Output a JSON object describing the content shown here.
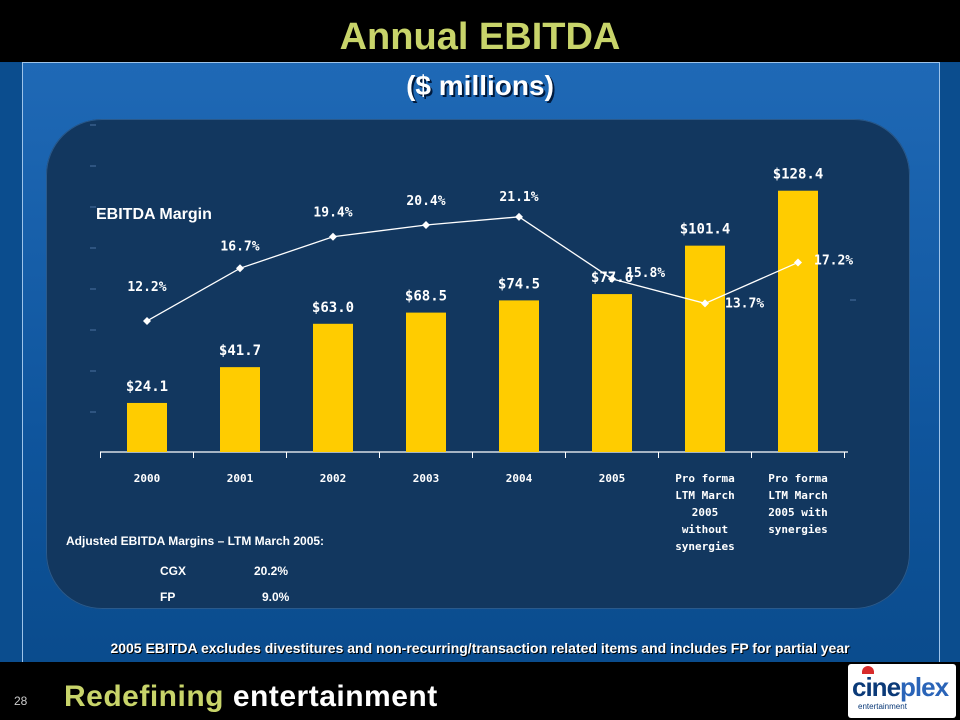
{
  "slide": {
    "title": "Annual EBITDA",
    "subtitle": "($ millions)",
    "page_number": "28",
    "footnote": "2005 EBITDA excludes divestitures and non-recurring/transaction related items and includes FP for partial year",
    "tagline_word1": "Redefining",
    "tagline_word2": "entertainment",
    "logo_text_1": "cine",
    "logo_text_2": "plex",
    "logo_sub": "entertainment"
  },
  "margin_label": "EBITDA Margin",
  "adjusted": {
    "title": "Adjusted EBITDA Margins – LTM March 2005:",
    "rows": [
      {
        "name": "CGX",
        "value": "20.2%"
      },
      {
        "name": "FP",
        "value": "9.0%"
      }
    ]
  },
  "chart_data": {
    "type": "bar",
    "categories": [
      [
        "2000"
      ],
      [
        "2001"
      ],
      [
        "2002"
      ],
      [
        "2003"
      ],
      [
        "2004"
      ],
      [
        "2005"
      ],
      [
        "Pro forma",
        "LTM March",
        "2005",
        "without",
        "synergies"
      ],
      [
        "Pro forma",
        "LTM March",
        "2005 with",
        "synergies"
      ]
    ],
    "series": [
      {
        "values": [
          24.1,
          41.7,
          63.0,
          68.5,
          74.5,
          77.6,
          101.4,
          128.4
        ],
        "labels": [
          "$24.1",
          "$41.7",
          "$63.0",
          "$68.5",
          "$74.5",
          "$77.6",
          "$101.4",
          "$128.4"
        ]
      },
      {
        "values": [
          12.2,
          16.7,
          19.4,
          20.4,
          21.1,
          15.8,
          13.7,
          17.2
        ],
        "labels": [
          "12.2%",
          "16.7%",
          "19.4%",
          "20.4%",
          "21.1%",
          "15.8%",
          "13.7%",
          "17.2%"
        ]
      }
    ],
    "bar_ylim": [
      0,
      140
    ],
    "line_ylim": [
      0,
      24
    ],
    "colors": {
      "bar": "#ffcc00",
      "line": "#ffffff",
      "text": "#ffffff"
    }
  }
}
